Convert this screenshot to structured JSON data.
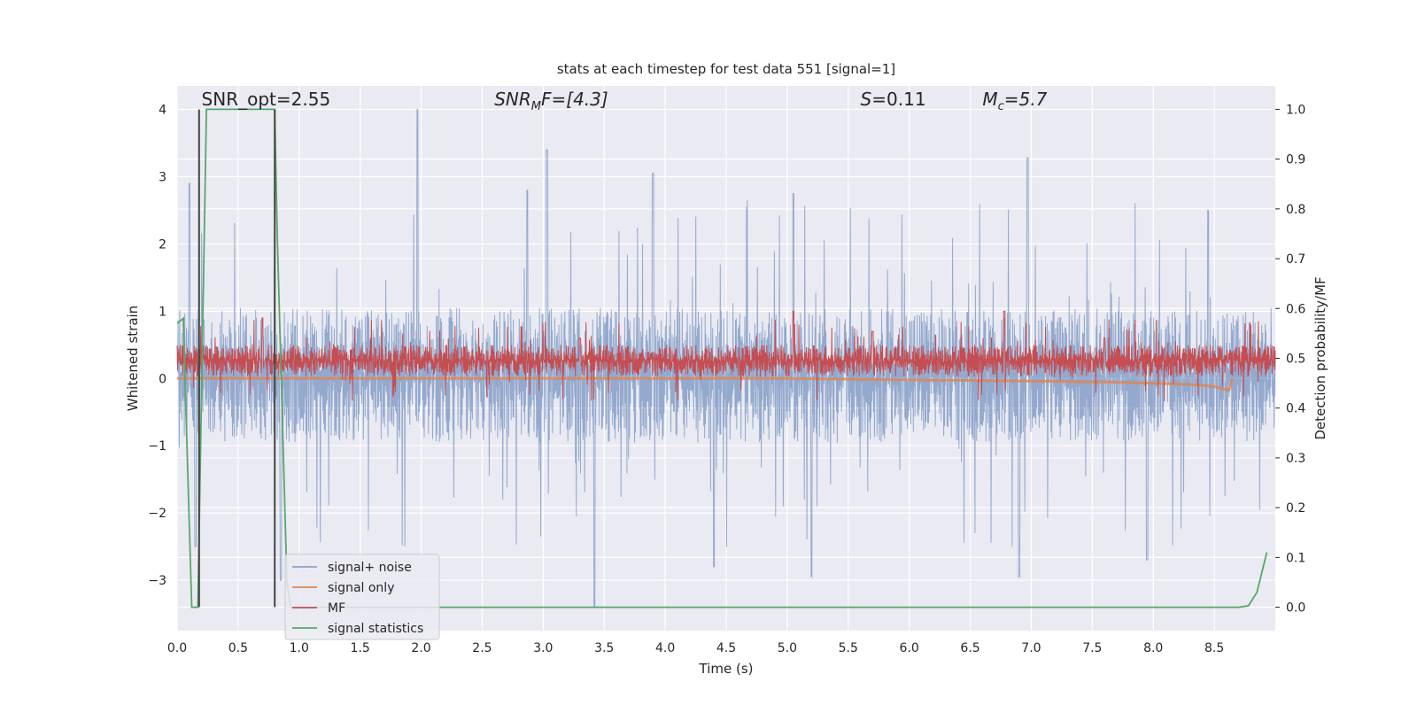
{
  "chart_data": {
    "type": "line",
    "title": "stats at each timestep for test data 551 [signal=1]",
    "xlabel": "Time (s)",
    "ylabel": "Whitened strain",
    "ylabel_right": "Detection probability/MF",
    "xlim": [
      0.0,
      9.0
    ],
    "ylim": [
      -3.75,
      4.35
    ],
    "ylim_right": [
      -0.047,
      1.047
    ],
    "xticks": [
      0.0,
      0.5,
      1.0,
      1.5,
      2.0,
      2.5,
      3.0,
      3.5,
      4.0,
      4.5,
      5.0,
      5.5,
      6.0,
      6.5,
      7.0,
      7.5,
      8.0,
      8.5
    ],
    "xtick_labels": [
      "0.0",
      "0.5",
      "1.0",
      "1.5",
      "2.0",
      "2.5",
      "3.0",
      "3.5",
      "4.0",
      "4.5",
      "5.0",
      "5.5",
      "6.0",
      "6.5",
      "7.0",
      "7.5",
      "8.0",
      "8.5"
    ],
    "yticks": [
      -3,
      -2,
      -1,
      0,
      1,
      2,
      3,
      4
    ],
    "ytick_labels": [
      "−3",
      "−2",
      "−1",
      "0",
      "1",
      "2",
      "3",
      "4"
    ],
    "yticks_right": [
      0.0,
      0.1,
      0.2,
      0.3,
      0.4,
      0.5,
      0.6,
      0.7,
      0.8,
      0.9,
      1.0
    ],
    "ytick_labels_right": [
      "0.0",
      "0.1",
      "0.2",
      "0.3",
      "0.4",
      "0.5",
      "0.6",
      "0.7",
      "0.8",
      "0.9",
      "1.0"
    ],
    "grid": true,
    "legend_position": "lower-left",
    "annotations": [
      {
        "text": "SNR_opt=2.55",
        "x": 0.2,
        "y": 4.15
      },
      {
        "text": "SNR_MF=[4.3]",
        "x": 2.6,
        "y": 4.15
      },
      {
        "text": "S=0.11",
        "x": 5.6,
        "y": 4.15
      },
      {
        "text": "M_c=5.7",
        "x": 6.6,
        "y": 4.15
      }
    ],
    "vertical_markers": {
      "color": "#444444",
      "lines": [
        {
          "x": 0.18,
          "y0": -3.4,
          "y1": 4.0
        },
        {
          "x": 0.8,
          "y0": -3.4,
          "y1": 4.0
        }
      ]
    },
    "series": [
      {
        "name": "signal+ noise",
        "color": "#4c72b0",
        "axis": "left",
        "style": "noise-band",
        "band": [
          -0.95,
          1.05
        ],
        "peaks_up": [
          [
            0.1,
            2.9
          ],
          [
            1.97,
            4.0
          ],
          [
            2.87,
            2.8
          ],
          [
            3.03,
            3.4
          ],
          [
            3.9,
            3.05
          ],
          [
            5.05,
            2.75
          ],
          [
            6.97,
            3.28
          ],
          [
            8.45,
            2.5
          ]
        ],
        "peaks_down": [
          [
            0.15,
            -2.5
          ],
          [
            0.85,
            -3.0
          ],
          [
            3.42,
            -3.4
          ],
          [
            4.4,
            -2.8
          ],
          [
            5.2,
            -2.95
          ],
          [
            6.9,
            -2.95
          ],
          [
            7.95,
            -2.7
          ]
        ]
      },
      {
        "name": "signal only",
        "color": "#dd8452",
        "axis": "left",
        "x": [
          0.0,
          1.0,
          2.0,
          3.0,
          4.0,
          5.0,
          6.0,
          7.0,
          7.5,
          8.0,
          8.3,
          8.5,
          8.62,
          8.65
        ],
        "y": [
          0.0,
          0.0,
          0.0,
          0.0,
          0.0,
          0.0,
          -0.02,
          -0.04,
          -0.05,
          -0.07,
          -0.09,
          -0.12,
          -0.18,
          0.0
        ]
      },
      {
        "name": "MF",
        "color": "#c44e52",
        "axis": "left",
        "style": "noise-band",
        "band": [
          0.03,
          0.5
        ],
        "peaks_up": [
          [
            0.7,
            0.9
          ],
          [
            3.3,
            0.6
          ],
          [
            5.05,
            1.0
          ],
          [
            5.7,
            0.7
          ],
          [
            6.78,
            1.0
          ],
          [
            7.6,
            0.6
          ]
        ],
        "peaks_down": []
      },
      {
        "name": "signal statistics",
        "color": "#55a868",
        "axis": "right",
        "x": [
          0.0,
          0.05,
          0.12,
          0.17,
          0.24,
          0.8,
          0.82,
          0.9,
          0.93,
          1.0,
          2.0,
          3.0,
          4.0,
          5.0,
          6.0,
          7.0,
          8.0,
          8.7,
          8.78,
          8.85,
          8.93
        ],
        "y": [
          0.57,
          0.58,
          0.0,
          0.0,
          1.0,
          1.0,
          0.75,
          0.05,
          0.0,
          0.0,
          0.0,
          0.0,
          0.0,
          0.0,
          0.0,
          0.0,
          0.0,
          0.0,
          0.003,
          0.03,
          0.11
        ]
      }
    ]
  }
}
